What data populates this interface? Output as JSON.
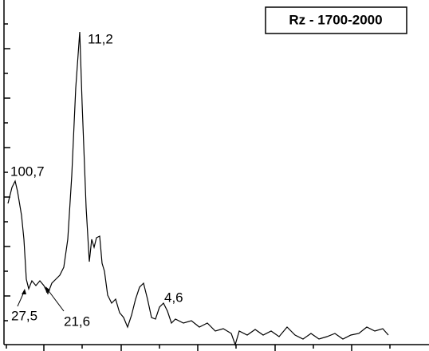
{
  "chart_data": {
    "type": "line",
    "x": [
      5,
      10,
      14,
      17,
      22,
      25,
      28,
      31,
      35,
      40,
      45,
      50,
      55,
      60,
      65,
      70,
      75,
      80,
      85,
      90,
      95,
      98,
      103,
      107,
      110,
      113,
      116,
      120,
      123,
      126,
      130,
      135,
      140,
      145,
      150,
      155,
      160,
      165,
      170,
      175,
      180,
      185,
      190,
      195,
      200,
      205,
      210,
      215,
      225,
      235,
      245,
      255,
      265,
      275,
      285,
      290,
      295,
      305,
      315,
      325,
      335,
      345,
      355,
      365,
      375,
      385,
      395,
      405,
      415,
      425,
      435,
      445,
      455,
      465,
      475,
      482
    ],
    "series": [
      {
        "name": "Rz - 1700-2000",
        "color": "#000000",
        "values": [
          177,
          197,
          205,
          192,
          162,
          132,
          82,
          70,
          80,
          74,
          80,
          74,
          64,
          77,
          82,
          87,
          97,
          132,
          212,
          322,
          392,
          302,
          172,
          104,
          132,
          122,
          134,
          136,
          102,
          92,
          62,
          52,
          57,
          40,
          34,
          22,
          37,
          57,
          72,
          77,
          57,
          34,
          32,
          47,
          52,
          42,
          27,
          32,
          27,
          30,
          22,
          27,
          17,
          20,
          14,
          0,
          17,
          12,
          19,
          12,
          17,
          10,
          22,
          12,
          7,
          14,
          7,
          10,
          14,
          7,
          12,
          14,
          22,
          17,
          20,
          12
        ]
      }
    ],
    "annotations": [
      "11,2",
      "100,7",
      "27,5",
      "21,6",
      "4,6"
    ],
    "xlim": [
      0,
      533
    ],
    "xticks": [
      3,
      50,
      98,
      147,
      195,
      243,
      291,
      340,
      388,
      436,
      484
    ],
    "ylim": [
      0,
      432
    ],
    "yticks": [
      30,
      61,
      92,
      123,
      154,
      185,
      216,
      247,
      278,
      309,
      340,
      371,
      402
    ],
    "grid": false
  }
}
